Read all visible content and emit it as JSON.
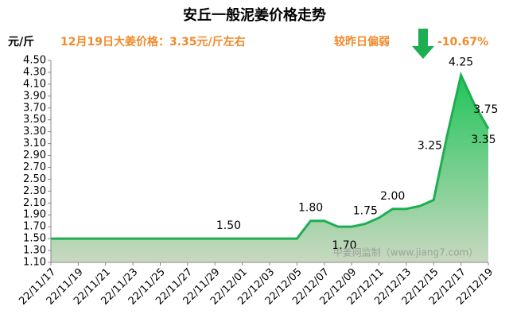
{
  "chart_data": {
    "type": "area",
    "title": "安丘一般泥姜价格走势",
    "y_unit": "元/斤",
    "subtitle": "12月19日大姜价格：3.35元/斤左右",
    "change_label": "较昨日偏弱",
    "change_value": "-10.67%",
    "watermark": "中姜网监制（www.jiang7.com）",
    "color": "#1eae52",
    "categories": [
      "22/11/17",
      null,
      "22/11/19",
      null,
      "22/11/21",
      null,
      "22/11/23",
      null,
      "22/11/25",
      null,
      "22/11/27",
      null,
      "22/11/29",
      null,
      "22/12/01",
      null,
      "22/12/03",
      null,
      "22/12/05",
      null,
      "22/12/07",
      null,
      "22/12/09",
      null,
      "22/12/11",
      null,
      "22/12/13",
      null,
      "22/12/15",
      null,
      "22/12/17",
      null,
      "22/12/19"
    ],
    "values": [
      1.5,
      1.5,
      1.5,
      1.5,
      1.5,
      1.5,
      1.5,
      1.5,
      1.5,
      1.5,
      1.5,
      1.5,
      1.5,
      1.5,
      1.5,
      1.5,
      1.5,
      1.5,
      1.5,
      1.8,
      1.8,
      1.7,
      1.7,
      1.75,
      1.85,
      2.0,
      2.0,
      2.05,
      2.15,
      3.25,
      4.25,
      3.75,
      3.35
    ],
    "value_labels": [
      null,
      null,
      null,
      null,
      null,
      null,
      null,
      null,
      null,
      null,
      null,
      null,
      null,
      "1.50",
      null,
      null,
      null,
      null,
      null,
      "1.80",
      null,
      "1.70",
      null,
      "1.75",
      null,
      "2.00",
      null,
      null,
      null,
      "3.25",
      "4.25",
      "3.75",
      "3.35"
    ],
    "ylim": [
      1.1,
      4.5
    ],
    "yticks": [
      {
        "value": 1.1,
        "label": "1.10"
      },
      {
        "value": 1.3,
        "label": "1.30"
      },
      {
        "value": 1.5,
        "label": "1.50"
      },
      {
        "value": 1.7,
        "label": "1.70"
      },
      {
        "value": 1.9,
        "label": "1.90"
      },
      {
        "value": 2.1,
        "label": "2.10"
      },
      {
        "value": 2.3,
        "label": "2.30"
      },
      {
        "value": 2.5,
        "label": "2.50"
      },
      {
        "value": 2.7,
        "label": "2.70"
      },
      {
        "value": 2.9,
        "label": "2.90"
      },
      {
        "value": 3.1,
        "label": "3.10"
      },
      {
        "value": 3.3,
        "label": "3.30"
      },
      {
        "value": 3.5,
        "label": "3.50"
      },
      {
        "value": 3.7,
        "label": "3.70"
      },
      {
        "value": 3.9,
        "label": "3.90"
      },
      {
        "value": 4.1,
        "label": "4.10"
      },
      {
        "value": 4.3,
        "label": "4.30"
      },
      {
        "value": 4.5,
        "label": "4.50"
      }
    ],
    "grid": false
  }
}
